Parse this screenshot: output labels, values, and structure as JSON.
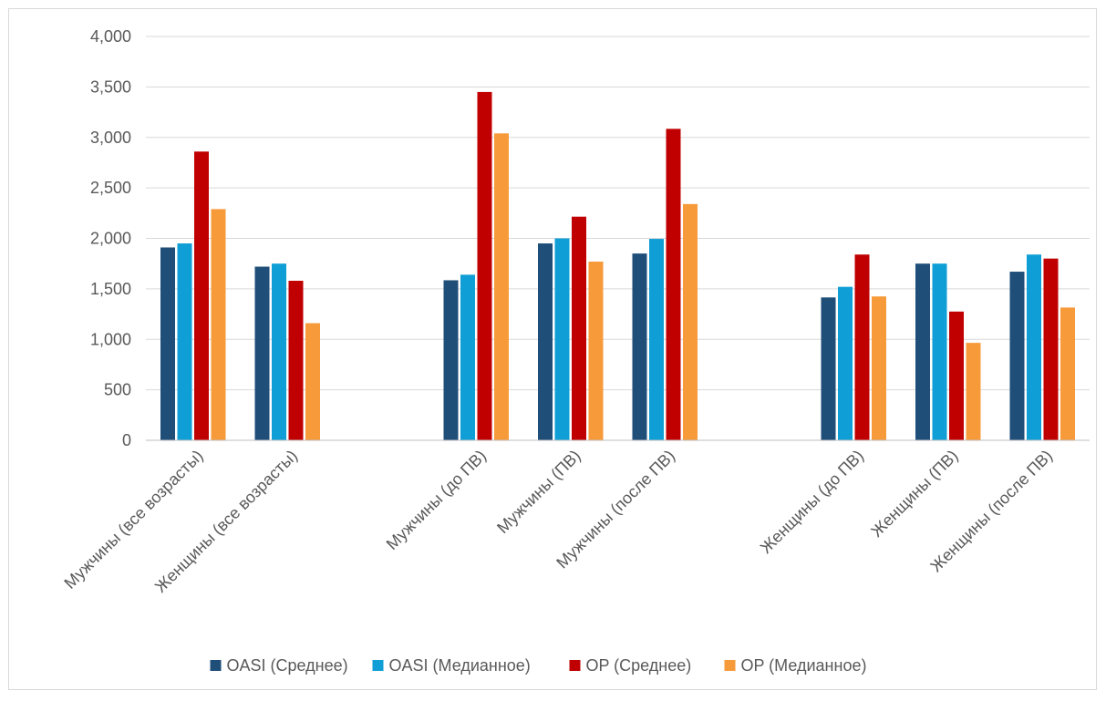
{
  "chart_data": {
    "type": "bar",
    "title": "",
    "xlabel": "",
    "ylabel": "",
    "ylim": [
      0,
      4000
    ],
    "yticks": [
      "0",
      "500",
      "1,000",
      "1,500",
      "2,000",
      "2,500",
      "3,000",
      "3,500",
      "4,000"
    ],
    "ytick_values": [
      0,
      500,
      1000,
      1500,
      2000,
      2500,
      3000,
      3500,
      4000
    ],
    "grid": true,
    "legend_position": "bottom",
    "categories": [
      "Мужчины (все возрасты)",
      "Женщины (все возрасты)",
      "",
      "Мужчины (до ПВ)",
      "Мужчины (ПВ)",
      "Мужчины (после ПВ)",
      "",
      "Женщины (до ПВ)",
      "Женщины (ПВ)",
      "Женщины (после ПВ)"
    ],
    "series": [
      {
        "name": "OASI (Среднее)",
        "color": "#1f4e79",
        "values": [
          1910,
          1720,
          null,
          1585,
          1950,
          1850,
          null,
          1415,
          1750,
          1670
        ]
      },
      {
        "name": "OASI (Медианное)",
        "color": "#0f9ed5",
        "values": [
          1950,
          1750,
          null,
          1640,
          2000,
          1995,
          null,
          1520,
          1750,
          1840
        ]
      },
      {
        "name": "OP (Среднее)",
        "color": "#c00000",
        "values": [
          2860,
          1580,
          null,
          3450,
          2215,
          3085,
          null,
          1840,
          1275,
          1800
        ]
      },
      {
        "name": "OP (Медианное)",
        "color": "#f79a3a",
        "values": [
          2290,
          1160,
          null,
          3040,
          1770,
          2340,
          null,
          1425,
          965,
          1315
        ]
      }
    ]
  }
}
